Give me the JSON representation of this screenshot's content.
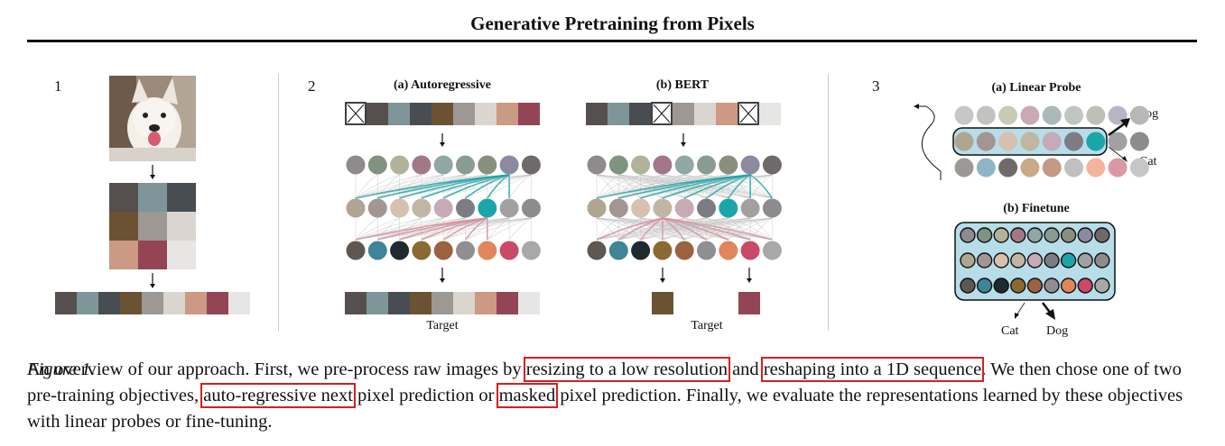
{
  "paper": {
    "title": "Generative Pretraining from Pixels"
  },
  "figure": {
    "step1_num": "1",
    "step2_num": "2",
    "step3_num": "3",
    "autoregressive_label": "(a) Autoregressive",
    "bert_label": "(b) BERT",
    "linear_probe_label": "(a) Linear Probe",
    "finetune_label": "(b) Finetune",
    "target_label": "Target",
    "target_label_2": "Target",
    "dog_label": "Dog",
    "cat_label": "Cat",
    "cat_label_2": "Cat",
    "dog_label_2": "Dog",
    "colors": {
      "accent": "#d42020",
      "teal": "#1aa6a8",
      "pink": "#d88a9a",
      "probe_bg": "#b7dde9"
    }
  },
  "caption": {
    "fig_label": "Figure 1.",
    "t1": " An overview of our approach. First, we pre-process raw images by ",
    "h1": "resizing to a low resolution",
    "t2": " and ",
    "h2": "reshaping into a 1D sequence",
    "t3": ". We then chose one of two pre-training objectives, ",
    "h3": "auto-regressive next",
    "t4": " pixel prediction or ",
    "h4": "masked",
    "t5": " pixel prediction. Finally, we evaluate the representations learned by these objectives with linear probes or fine-tuning."
  }
}
